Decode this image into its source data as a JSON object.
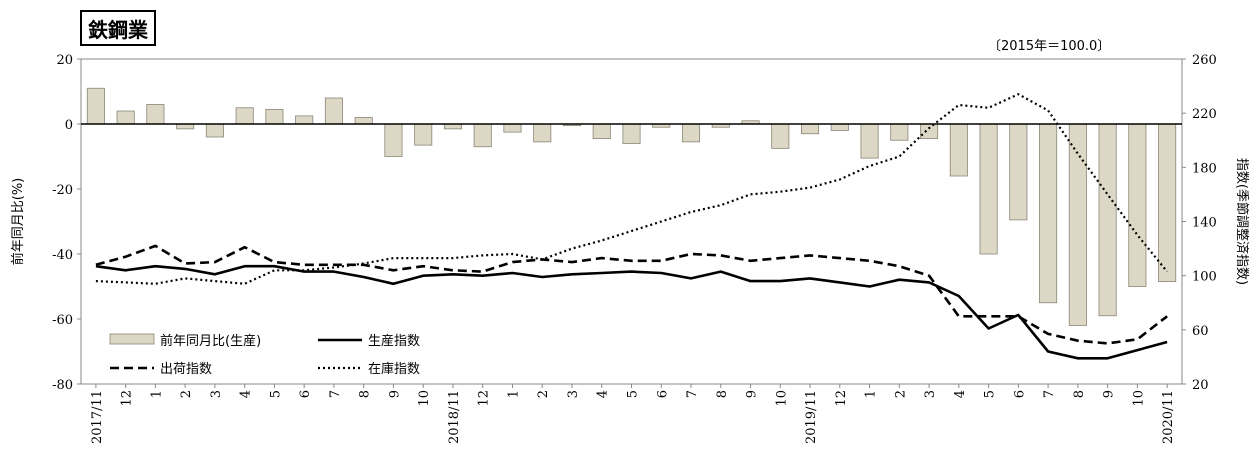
{
  "header": {
    "title": "鉄鋼業",
    "base_note": "〔2015年＝100.0〕"
  },
  "chart_data": {
    "type": "bar+line",
    "x": [
      "2017/11",
      "12",
      "1",
      "2",
      "3",
      "4",
      "5",
      "6",
      "7",
      "8",
      "9",
      "10",
      "2018/11",
      "12",
      "1",
      "2",
      "3",
      "4",
      "5",
      "6",
      "7",
      "8",
      "9",
      "10",
      "2019/11",
      "12",
      "1",
      "2",
      "3",
      "4",
      "5",
      "6",
      "7",
      "8",
      "9",
      "10",
      "2020/11"
    ],
    "left_axis": {
      "label": "前年同月比(%)",
      "ylim": [
        -80,
        20
      ],
      "ticks": [
        20,
        0,
        -20,
        -40,
        -60,
        -80
      ]
    },
    "right_axis": {
      "label": "指数(季節調整済指数)",
      "ylim": [
        20,
        260
      ],
      "ticks": [
        260,
        220,
        180,
        140,
        100,
        60,
        20
      ]
    },
    "series": [
      {
        "name": "前年同月比(生産)",
        "type": "bar",
        "axis": "left",
        "color": "#ddd8c5",
        "values": [
          11,
          4,
          6,
          -1.5,
          -4,
          5,
          4.5,
          2.5,
          8,
          2,
          -10,
          -6.5,
          -1.5,
          -7,
          -2.5,
          -5.5,
          -0.5,
          -4.5,
          -6,
          -1,
          -5.5,
          -1,
          1,
          -7.5,
          -3,
          -2,
          -10.5,
          -5,
          -4.5,
          -16,
          -40,
          -29.5,
          -55,
          -62,
          -59,
          -50,
          -48.5
        ]
      },
      {
        "name": "生産指数",
        "type": "line",
        "axis": "right",
        "style": "solid",
        "values": [
          107,
          104,
          107,
          105,
          101,
          107,
          107,
          103,
          103,
          99,
          94,
          100,
          101,
          100,
          102,
          99,
          101,
          102,
          103,
          102,
          98,
          103,
          96,
          96,
          98,
          95,
          92,
          97,
          95,
          85,
          61,
          71,
          44,
          39,
          39,
          45,
          51
        ]
      },
      {
        "name": "出荷指数",
        "type": "line",
        "axis": "right",
        "style": "dashed",
        "values": [
          108,
          114,
          122,
          109,
          110,
          121,
          110,
          108,
          108,
          108,
          104,
          107,
          104,
          103,
          110,
          112,
          110,
          113,
          111,
          111,
          116,
          115,
          111,
          113,
          115,
          113,
          111,
          107,
          100,
          70,
          70,
          70,
          57,
          52,
          50,
          53,
          70
        ]
      },
      {
        "name": "在庫指数",
        "type": "line",
        "axis": "right",
        "style": "dotted",
        "values": [
          96,
          95,
          94,
          98,
          96,
          94,
          104,
          104,
          106,
          109,
          113,
          113,
          113,
          115,
          116,
          112,
          120,
          126,
          133,
          140,
          147,
          152,
          160,
          162,
          165,
          171,
          181,
          188,
          209,
          226,
          224,
          234,
          222,
          190,
          160,
          130,
          103
        ]
      }
    ],
    "legend": {
      "placement": "bottom-left",
      "entries": [
        "前年同月比(生産)",
        "生産指数",
        "出荷指数",
        "在庫指数"
      ]
    },
    "grid": false
  }
}
